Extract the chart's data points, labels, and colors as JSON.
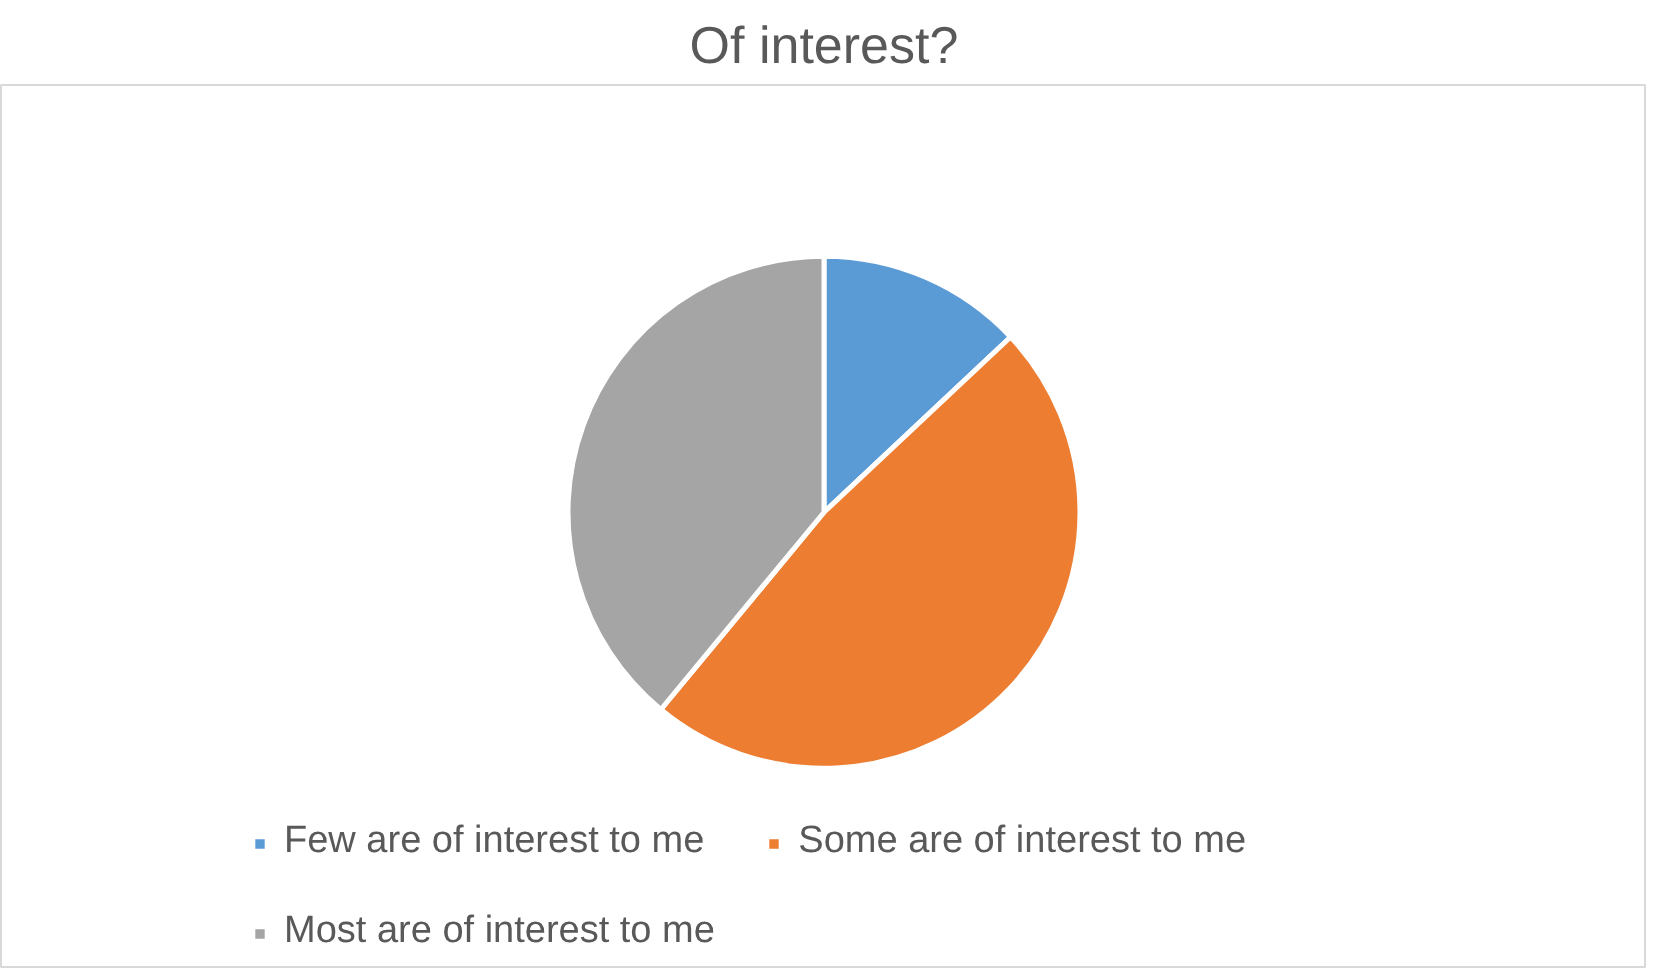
{
  "chart_data": {
    "type": "pie",
    "title": "Of interest?",
    "categories": [
      "Few are of interest to me",
      "Some are of interest to me",
      "Most are of interest to me"
    ],
    "values": [
      13,
      48,
      39
    ],
    "colors": [
      "#5b9bd5",
      "#ed7d31",
      "#a5a5a5"
    ],
    "legend": "bottom"
  }
}
